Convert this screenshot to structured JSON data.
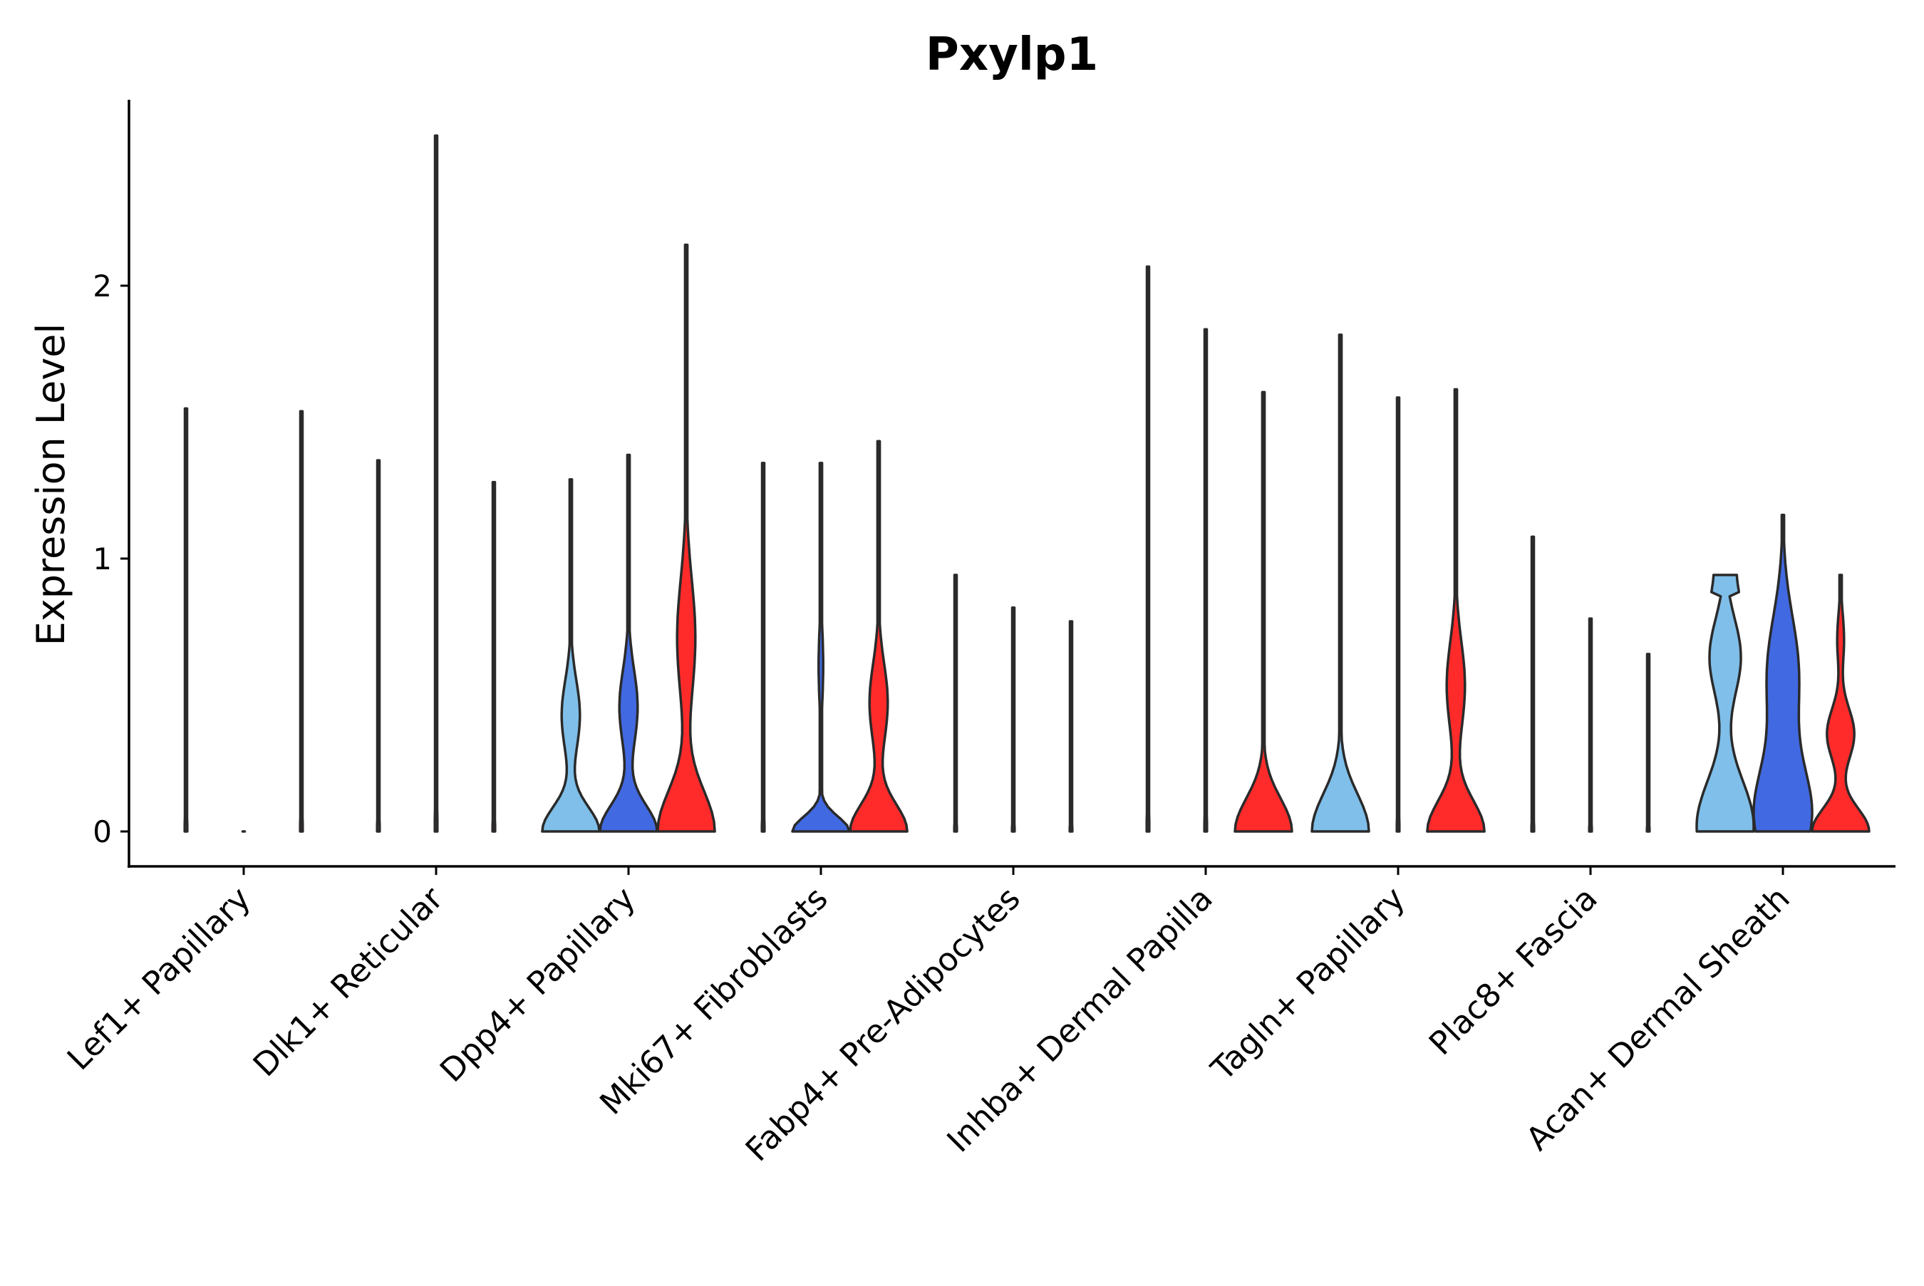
{
  "chart_data": {
    "type": "violin",
    "title": "Pxylp1",
    "ylabel": "Expression Level",
    "xlabel": "",
    "ylim": [
      -0.13,
      2.68
    ],
    "yticks": [
      0,
      1,
      2
    ],
    "grid": false,
    "legend": "none",
    "colors": {
      "light_blue": "#7fbfea",
      "blue": "#4169e1",
      "red": "#ff2b2b",
      "outline": "#2a2a2a"
    },
    "categories": [
      "Lef1+ Papillary",
      "Dlk1+ Reticular",
      "Dpp4+ Papillary",
      "Mki67+ Fibroblasts",
      "Fabp4+ Pre-Adipocytes",
      "Inhba+ Dermal Papilla",
      "Tagln+ Papillary",
      "Plac8+ Fascia",
      "Acan+ Dermal Sheath"
    ],
    "series_colors": [
      "light_blue",
      "blue",
      "red"
    ],
    "violins": [
      [
        {
          "max": 1.55,
          "shape": "spike"
        },
        {
          "max": 0.0,
          "shape": "flat"
        },
        {
          "max": 1.54,
          "shape": "spike"
        }
      ],
      [
        {
          "max": 1.36,
          "shape": "spike"
        },
        {
          "max": 2.55,
          "shape": "spike"
        },
        {
          "max": 1.28,
          "shape": "spike"
        }
      ],
      [
        {
          "max": 1.29,
          "shape": "mid"
        },
        {
          "max": 1.38,
          "shape": "mid"
        },
        {
          "max": 2.15,
          "shape": "mid"
        }
      ],
      [
        {
          "max": 1.35,
          "shape": "spike"
        },
        {
          "max": 1.35,
          "shape": "low"
        },
        {
          "max": 1.43,
          "shape": "mid"
        }
      ],
      [
        {
          "max": 0.94,
          "shape": "spike"
        },
        {
          "max": 0.82,
          "shape": "spike"
        },
        {
          "max": 0.77,
          "shape": "spike"
        }
      ],
      [
        {
          "max": 2.07,
          "shape": "spike"
        },
        {
          "max": 1.84,
          "shape": "spike"
        },
        {
          "max": 1.61,
          "shape": "bottom"
        }
      ],
      [
        {
          "max": 1.82,
          "shape": "bottom"
        },
        {
          "max": 1.59,
          "shape": "spike"
        },
        {
          "max": 1.62,
          "shape": "mid"
        }
      ],
      [
        {
          "max": 1.08,
          "shape": "spike"
        },
        {
          "max": 0.78,
          "shape": "spike"
        },
        {
          "max": 0.65,
          "shape": "spike"
        }
      ],
      [
        {
          "max": 0.94,
          "shape": "flattop"
        },
        {
          "max": 1.16,
          "shape": "wide"
        },
        {
          "max": 0.94,
          "shape": "bimodal"
        }
      ]
    ]
  }
}
